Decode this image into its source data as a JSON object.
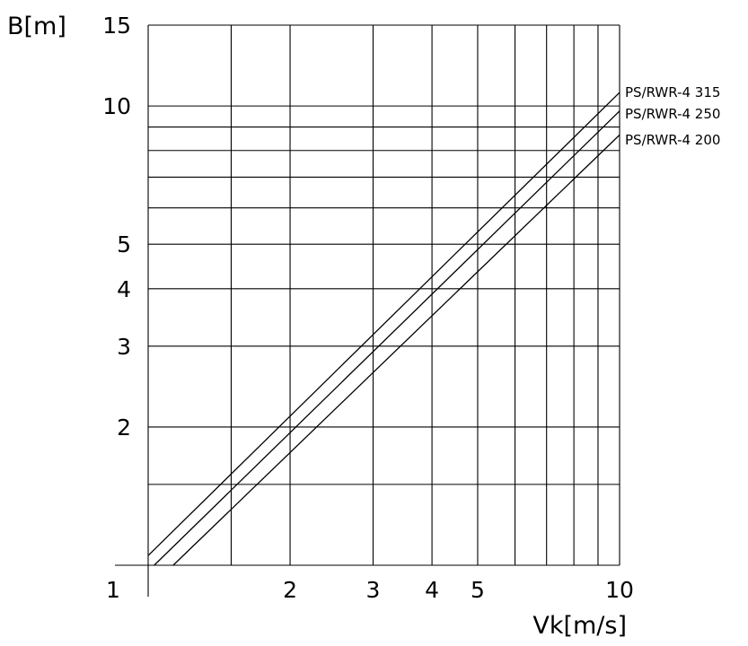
{
  "chart_data": {
    "type": "line",
    "x_scale": "log",
    "y_scale": "log",
    "xlabel": "Vk[m/s]",
    "ylabel": "B[m]",
    "xlim": [
      1,
      10
    ],
    "ylim": [
      1,
      15
    ],
    "x_ticks": [
      1,
      2,
      3,
      4,
      5,
      10
    ],
    "x_tick_labels": [
      "1",
      "2",
      "3",
      "4",
      "5",
      "10"
    ],
    "y_ticks": [
      2,
      3,
      4,
      5,
      10,
      15
    ],
    "y_tick_labels": [
      "2",
      "3",
      "4",
      "5",
      "10",
      "15"
    ],
    "x_grid": [
      1.5,
      2,
      3,
      4,
      5,
      6,
      7,
      8,
      9,
      10
    ],
    "y_grid": [
      1.5,
      2,
      3,
      4,
      5,
      6,
      7,
      8,
      9,
      10,
      15
    ],
    "grid": true,
    "series": [
      {
        "name": "PS/RWR-4 315",
        "x": [
          1,
          10
        ],
        "y": [
          1.05,
          10.7
        ]
      },
      {
        "name": "PS/RWR-4 250",
        "x": [
          1.03,
          10
        ],
        "y": [
          1.0,
          9.75
        ]
      },
      {
        "name": "PS/RWR-4 200",
        "x": [
          1.13,
          10
        ],
        "y": [
          1.0,
          8.65
        ]
      }
    ]
  }
}
